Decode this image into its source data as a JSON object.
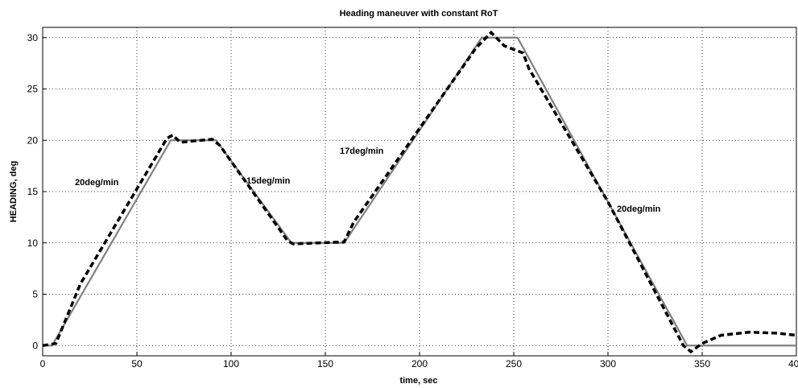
{
  "chart_data": {
    "type": "line",
    "title": "Heading maneuver with constant RoT",
    "xlabel": "time, sec",
    "ylabel": "HEADING, deg",
    "annotations": [
      "20deg/min",
      "15deg/min",
      "17deg/min",
      "20deg/min"
    ],
    "xlim": [
      0,
      400
    ],
    "xticks": [
      0,
      50,
      100,
      150,
      200,
      250,
      300,
      350,
      400
    ],
    "ylim": [
      -1,
      31
    ],
    "yticks": [
      0,
      5,
      10,
      15,
      20,
      25,
      30
    ],
    "grid": true,
    "series": [
      {
        "color": "#808080",
        "dash": false,
        "x": [
          0,
          5,
          68,
          92,
          132,
          160,
          233,
          252,
          342,
          400
        ],
        "values": [
          0,
          0,
          20,
          20,
          10,
          10,
          30,
          30,
          0,
          0
        ]
      },
      {
        "color": "#000000",
        "dash": true,
        "x": [
          0,
          7,
          20,
          66,
          69,
          73,
          90,
          94,
          130,
          133,
          160,
          165,
          230,
          238,
          245,
          255,
          258,
          300,
          340,
          344,
          350,
          360,
          375,
          390,
          400
        ],
        "values": [
          0,
          0.2,
          6,
          20.2,
          20.5,
          19.8,
          20.1,
          19.5,
          10.2,
          9.9,
          10.1,
          12,
          29,
          30.5,
          29.2,
          28.5,
          27,
          14,
          0,
          -0.6,
          0.2,
          1,
          1.3,
          1.2,
          1
        ]
      }
    ]
  }
}
